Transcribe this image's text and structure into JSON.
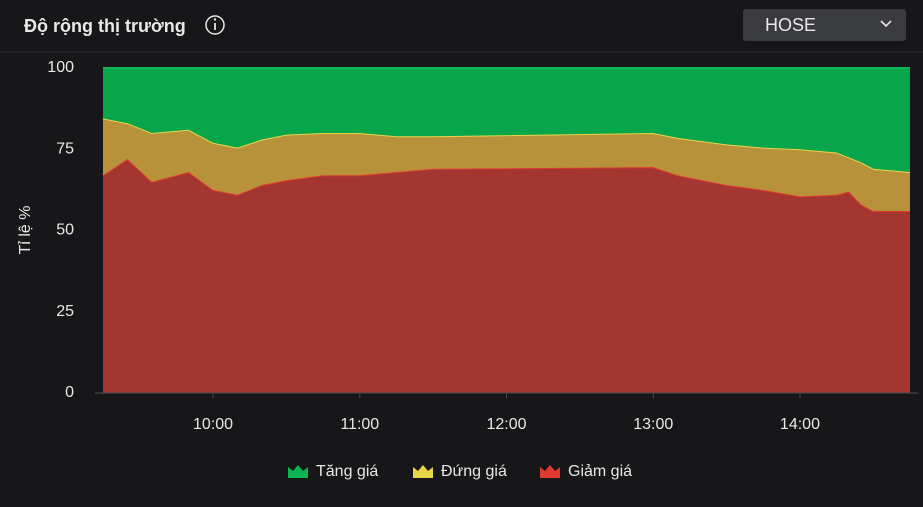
{
  "header": {
    "title": "Độ rộng thị trường",
    "dropdown": "HOSE"
  },
  "chart_data": {
    "type": "area",
    "stacked": true,
    "y_label": "Tỉ lệ %",
    "x": [
      "9:15",
      "9:25",
      "9:35",
      "9:50",
      "10:00",
      "10:10",
      "10:20",
      "10:30",
      "10:45",
      "11:00",
      "11:15",
      "11:30",
      "13:00",
      "13:10",
      "13:30",
      "13:45",
      "14:00",
      "14:15",
      "14:20",
      "14:25",
      "14:30",
      "14:45"
    ],
    "series": [
      {
        "name": "Tăng giá",
        "color": "#07a64b",
        "line_color": "#0cb553",
        "values": [
          15.5,
          17,
          20,
          19,
          23,
          24.5,
          22,
          20.5,
          20,
          20,
          21,
          21,
          20,
          21.5,
          23.5,
          24.5,
          25,
          26,
          27.5,
          29,
          31,
          32
        ]
      },
      {
        "name": "Đứng giá",
        "color": "#b8923a",
        "line_color": "#e8d54a",
        "values": [
          17.5,
          11,
          15,
          13,
          14.5,
          14.5,
          14,
          14,
          13,
          13,
          11,
          10,
          10.5,
          11.5,
          12.5,
          13,
          14.5,
          13,
          10.5,
          13,
          13,
          12
        ]
      },
      {
        "name": "Giảm giá",
        "color": "#a33631",
        "line_color": "#e03a30",
        "values": [
          67,
          72,
          65,
          68,
          62.5,
          61,
          64,
          65.5,
          67,
          67,
          68,
          69,
          69.5,
          67,
          64,
          62.5,
          60.5,
          61,
          62,
          58,
          56,
          56
        ]
      }
    ],
    "xlim": [
      "9:15",
      "14:45"
    ],
    "xticks": [
      "10:00",
      "11:00",
      "12:00",
      "13:00",
      "14:00"
    ],
    "ylim": [
      0,
      100
    ],
    "yticks": [
      0,
      25,
      50,
      75,
      100
    ],
    "grid": false,
    "legend": "bottom"
  }
}
